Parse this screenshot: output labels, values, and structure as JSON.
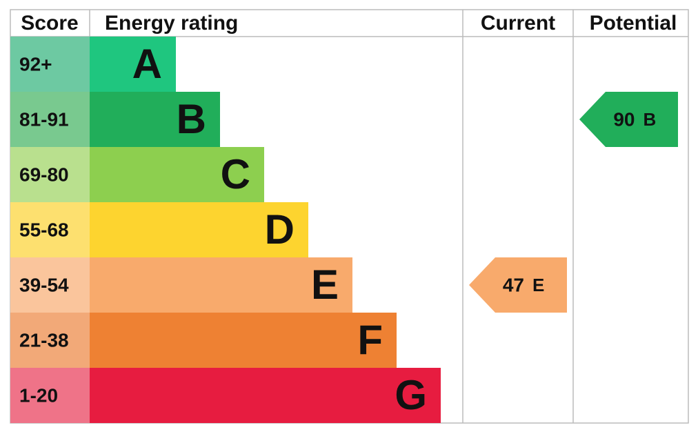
{
  "header": {
    "score": "Score",
    "rating": "Energy rating",
    "current": "Current",
    "potential": "Potential"
  },
  "bands": [
    {
      "score": "92+",
      "letter": "A",
      "color": "#1fc67f",
      "score_color": "#6dc9a2"
    },
    {
      "score": "81-91",
      "letter": "B",
      "color": "#21ae5a",
      "score_color": "#79c98f"
    },
    {
      "score": "69-80",
      "letter": "C",
      "color": "#8dcf4f",
      "score_color": "#b9e08e"
    },
    {
      "score": "55-68",
      "letter": "D",
      "color": "#fdd42f",
      "score_color": "#fde06f"
    },
    {
      "score": "39-54",
      "letter": "E",
      "color": "#f8aa6c",
      "score_color": "#fac59c"
    },
    {
      "score": "21-38",
      "letter": "F",
      "color": "#ee8133",
      "score_color": "#f2a978"
    },
    {
      "score": "1-20",
      "letter": "G",
      "color": "#e71c40",
      "score_color": "#ef7388"
    }
  ],
  "current": {
    "value": 47,
    "letter": "E"
  },
  "potential": {
    "value": 90,
    "letter": "B"
  }
}
